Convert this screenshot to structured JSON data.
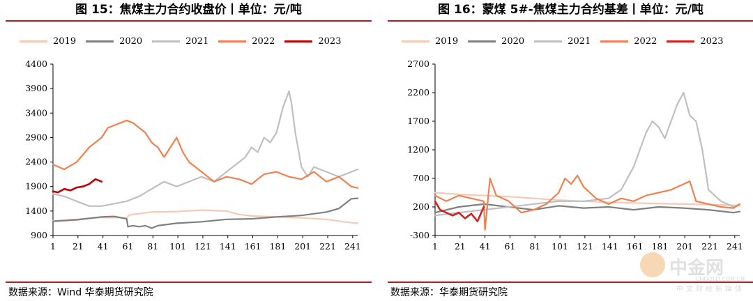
{
  "chart_data": [
    {
      "type": "line",
      "title": "图 15：焦煤主力合约收盘价丨单位：元/吨",
      "source": "数据来源：Wind 华泰期货研究院",
      "ylim": [
        900,
        4400
      ],
      "yticks": [
        900,
        1400,
        1900,
        2400,
        2900,
        3400,
        3900,
        4400
      ],
      "xlim": [
        1,
        245
      ],
      "xticks": [
        1,
        21,
        41,
        61,
        81,
        101,
        121,
        141,
        161,
        181,
        201,
        221,
        241
      ],
      "legend": "top",
      "series": [
        {
          "name": "2019",
          "color": "#f7c9b4",
          "x": [
            1,
            20,
            40,
            60,
            62,
            80,
            100,
            120,
            140,
            150,
            160,
            180,
            200,
            220,
            240,
            245
          ],
          "values": [
            1200,
            1230,
            1270,
            1260,
            1320,
            1380,
            1390,
            1420,
            1400,
            1330,
            1300,
            1280,
            1260,
            1230,
            1160,
            1150
          ]
        },
        {
          "name": "2020",
          "color": "#7f7f7f",
          "x": [
            1,
            20,
            40,
            50,
            60,
            61,
            65,
            70,
            75,
            80,
            85,
            100,
            120,
            140,
            160,
            180,
            200,
            220,
            230,
            240,
            245
          ],
          "values": [
            1190,
            1220,
            1280,
            1290,
            1240,
            1080,
            1100,
            1080,
            1100,
            1050,
            1100,
            1150,
            1180,
            1230,
            1240,
            1280,
            1310,
            1380,
            1450,
            1650,
            1660
          ]
        },
        {
          "name": "2021",
          "color": "#bfbfbf",
          "x": [
            1,
            10,
            20,
            30,
            40,
            50,
            60,
            70,
            80,
            90,
            100,
            110,
            120,
            130,
            140,
            150,
            155,
            160,
            165,
            170,
            175,
            180,
            185,
            190,
            192,
            195,
            200,
            205,
            210,
            220,
            230,
            240,
            245
          ],
          "values": [
            1750,
            1700,
            1600,
            1500,
            1500,
            1550,
            1600,
            1700,
            1850,
            2000,
            1900,
            2000,
            2100,
            2000,
            2200,
            2400,
            2500,
            2700,
            2600,
            2900,
            2800,
            3000,
            3500,
            3850,
            3600,
            3000,
            2300,
            2100,
            2300,
            2200,
            2100,
            2200,
            2250
          ]
        },
        {
          "name": "2022",
          "color": "#f08050",
          "x": [
            1,
            10,
            20,
            30,
            40,
            45,
            50,
            55,
            60,
            65,
            70,
            75,
            80,
            85,
            90,
            95,
            100,
            105,
            110,
            120,
            130,
            140,
            150,
            160,
            170,
            180,
            190,
            200,
            210,
            220,
            230,
            240,
            245
          ],
          "values": [
            2350,
            2250,
            2400,
            2700,
            2900,
            3100,
            3150,
            3200,
            3250,
            3200,
            3100,
            3000,
            2800,
            2700,
            2500,
            2700,
            2900,
            2600,
            2400,
            2200,
            2000,
            2100,
            2050,
            1950,
            2150,
            2200,
            2100,
            2050,
            2200,
            2000,
            2100,
            1900,
            1870
          ]
        },
        {
          "name": "2023",
          "color": "#c00000",
          "x": [
            1,
            5,
            10,
            15,
            20,
            25,
            30,
            35,
            40
          ],
          "values": [
            1800,
            1780,
            1850,
            1820,
            1880,
            1900,
            1950,
            2050,
            2000
          ]
        }
      ]
    },
    {
      "type": "line",
      "title": "图 16：蒙煤 5#-焦煤主力合约基差丨单位：元/吨",
      "source": "数据来源：华泰期货研究院",
      "ylim": [
        -300,
        2700
      ],
      "yticks": [
        -300,
        200,
        700,
        1200,
        1700,
        2200,
        2700
      ],
      "xlim": [
        1,
        245
      ],
      "xticks": [
        1,
        21,
        41,
        61,
        81,
        101,
        121,
        141,
        161,
        181,
        201,
        221,
        241
      ],
      "legend": "top",
      "series": [
        {
          "name": "2019",
          "color": "#f7c9b4",
          "x": [
            1,
            20,
            40,
            60,
            80,
            100,
            120,
            140,
            160,
            180,
            200,
            220,
            240,
            245
          ],
          "values": [
            450,
            420,
            400,
            380,
            350,
            320,
            300,
            280,
            270,
            260,
            250,
            240,
            230,
            220
          ]
        },
        {
          "name": "2020",
          "color": "#7f7f7f",
          "x": [
            1,
            20,
            40,
            60,
            80,
            100,
            120,
            140,
            160,
            180,
            200,
            220,
            240,
            245
          ],
          "values": [
            100,
            200,
            250,
            200,
            150,
            220,
            180,
            200,
            150,
            200,
            180,
            150,
            100,
            120
          ]
        },
        {
          "name": "2021",
          "color": "#bfbfbf",
          "x": [
            1,
            20,
            40,
            60,
            80,
            100,
            120,
            140,
            150,
            160,
            165,
            170,
            175,
            180,
            185,
            190,
            195,
            200,
            205,
            210,
            215,
            220,
            230,
            240,
            245
          ],
          "values": [
            50,
            100,
            150,
            200,
            250,
            300,
            300,
            350,
            500,
            900,
            1200,
            1500,
            1700,
            1600,
            1400,
            1700,
            2000,
            2200,
            1800,
            1700,
            1200,
            500,
            300,
            200,
            250
          ]
        },
        {
          "name": "2022",
          "color": "#f08050",
          "x": [
            1,
            10,
            20,
            30,
            40,
            41,
            45,
            50,
            60,
            70,
            80,
            90,
            100,
            105,
            110,
            115,
            120,
            130,
            140,
            150,
            160,
            170,
            180,
            190,
            200,
            205,
            210,
            220,
            230,
            240,
            245
          ],
          "values": [
            400,
            300,
            400,
            350,
            300,
            -200,
            700,
            400,
            300,
            100,
            150,
            250,
            450,
            700,
            600,
            750,
            550,
            350,
            250,
            350,
            300,
            400,
            450,
            500,
            600,
            650,
            300,
            250,
            200,
            180,
            250
          ]
        },
        {
          "name": "2023",
          "color": "#d21f1f",
          "x": [
            1,
            5,
            10,
            15,
            20,
            25,
            30,
            35,
            40
          ],
          "values": [
            300,
            150,
            100,
            50,
            100,
            0,
            80,
            -50,
            200
          ]
        }
      ]
    }
  ],
  "watermark": {
    "name": "中金网",
    "url": "CNGOLD.COM.CN",
    "sub": "中文财经新媒体"
  }
}
